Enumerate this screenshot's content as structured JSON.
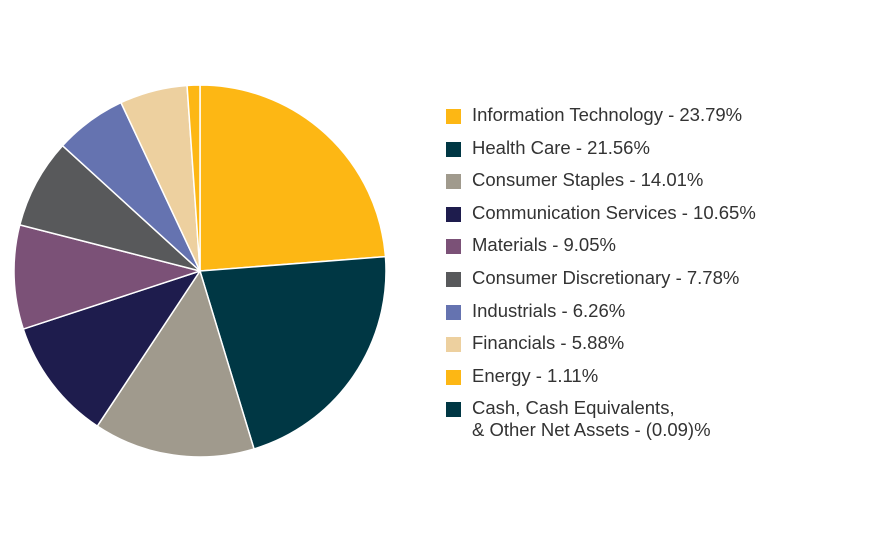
{
  "chart_data": {
    "type": "pie",
    "title": "",
    "start_angle_deg": 0,
    "direction": "clockwise",
    "slices": [
      {
        "label": "Information Technology - 23.79%",
        "category": "Information Technology",
        "value": 23.79,
        "color": "#FDB714"
      },
      {
        "label": "Health Care - 21.56%",
        "category": "Health Care",
        "value": 21.56,
        "color": "#003744"
      },
      {
        "label": "Consumer Staples - 14.01%",
        "category": "Consumer Staples",
        "value": 14.01,
        "color": "#A09A8D"
      },
      {
        "label": "Communication Services - 10.65%",
        "category": "Communication Services",
        "value": 10.65,
        "color": "#1E1C4D"
      },
      {
        "label": "Materials - 9.05%",
        "category": "Materials",
        "value": 9.05,
        "color": "#7B5177"
      },
      {
        "label": "Consumer Discretionary - 7.78%",
        "category": "Consumer Discretionary",
        "value": 7.78,
        "color": "#58595B"
      },
      {
        "label": "Industrials - 6.26%",
        "category": "Industrials",
        "value": 6.26,
        "color": "#6573B0"
      },
      {
        "label": "Financials - 5.88%",
        "category": "Financials",
        "value": 5.88,
        "color": "#EDD09F"
      },
      {
        "label": "Energy - 1.11%",
        "category": "Energy",
        "value": 1.11,
        "color": "#FDB714"
      },
      {
        "label": "Cash, Cash Equivalents,\n& Other Net Assets - (0.09)%",
        "category": "Cash, Cash Equivalents, & Other Net Assets",
        "value": -0.09,
        "color": "#003744"
      }
    ],
    "legend_position": "right"
  }
}
